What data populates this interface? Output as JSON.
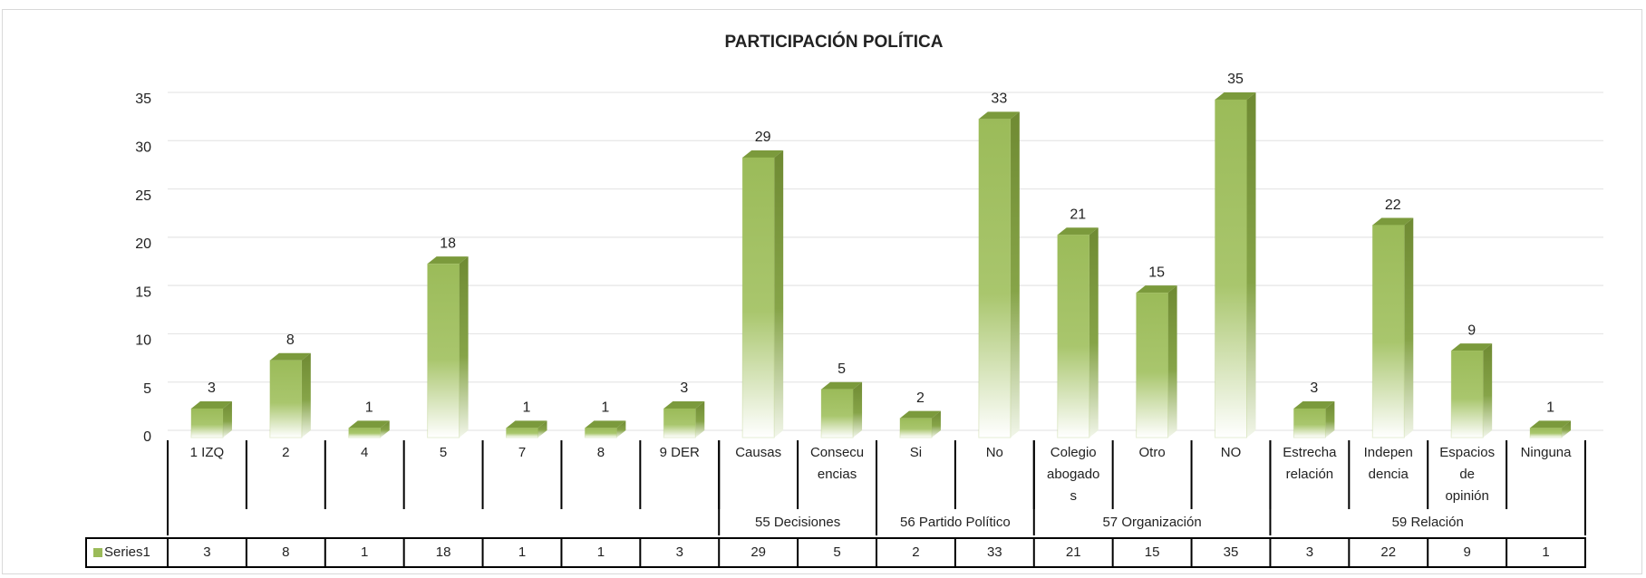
{
  "chart_data": {
    "type": "bar",
    "title": "PARTICIPACIÓN POLÍTICA",
    "categories": [
      "1 IZQ",
      "2",
      "4",
      "5",
      "7",
      "8",
      "9 DER",
      "Causas",
      "Consecu\nencias",
      "Si",
      "No",
      "Colegio\nabogado\ns",
      "Otro",
      "NO",
      "Estrecha\nrelación",
      "Indepen\ndencia",
      "Espacios\nde\nopinión",
      "Ninguna"
    ],
    "groups": [
      {
        "span": 7
      },
      {
        "name": "55 Decisiones",
        "span": 2
      },
      {
        "name": "56 Partido Político",
        "span": 2
      },
      {
        "name": "57 Organización",
        "span": 3
      },
      {
        "name": "59 Relación",
        "span": 4
      }
    ],
    "series": [
      {
        "name": "Series1",
        "color": "#9bbb59",
        "values": [
          3,
          8,
          1,
          18,
          1,
          1,
          3,
          29,
          5,
          2,
          33,
          21,
          15,
          35,
          3,
          22,
          9,
          1
        ]
      }
    ],
    "ylim": [
      0,
      35
    ],
    "yticks": [
      0,
      5,
      10,
      15,
      20,
      25,
      30,
      35
    ],
    "grid": true,
    "data_table": true
  }
}
